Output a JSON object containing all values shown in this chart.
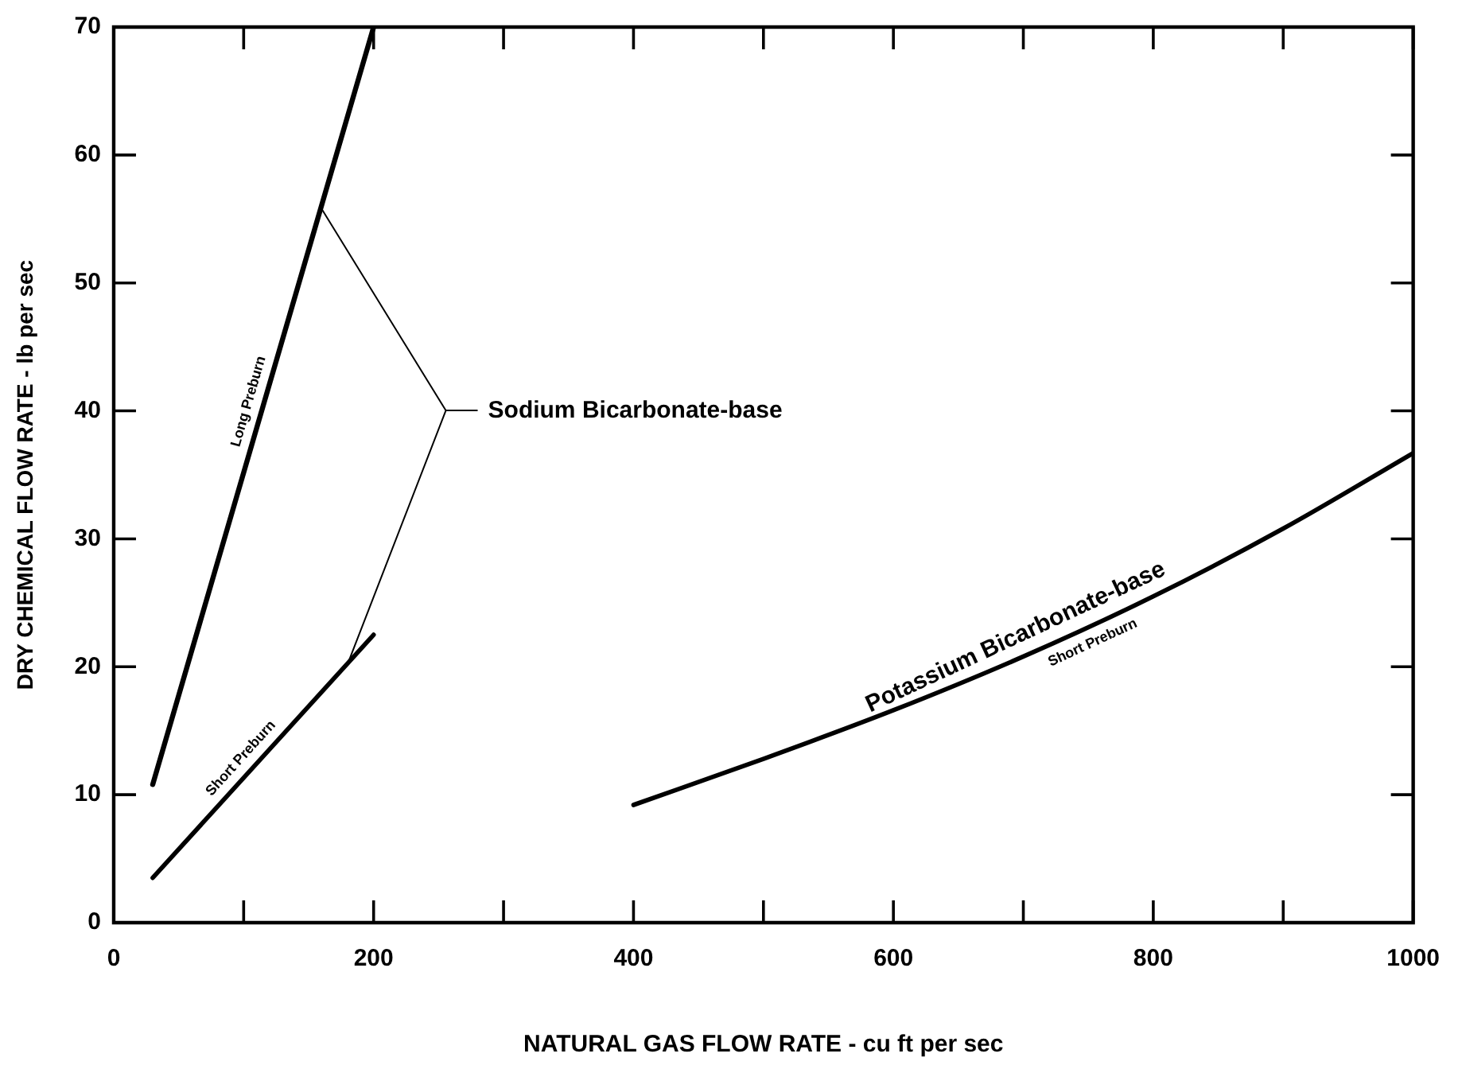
{
  "chart_data": {
    "type": "line",
    "xlabel": "NATURAL GAS FLOW RATE - cu ft per sec",
    "ylabel": "DRY CHEMICAL FLOW RATE - lb per sec",
    "xlim": [
      0,
      1000
    ],
    "xticks": [
      0,
      {
        "value": 100,
        "label": null
      },
      200,
      {
        "value": 300,
        "label": null
      },
      400,
      {
        "value": 500,
        "label": null
      },
      600,
      {
        "value": 700,
        "label": null
      },
      800,
      {
        "value": 900,
        "label": null
      },
      1000
    ],
    "ylim": [
      0,
      70
    ],
    "yticks": [
      0,
      10,
      20,
      30,
      40,
      50,
      60,
      70
    ],
    "series": [
      {
        "name": "Long Preburn",
        "color": "#000000",
        "x": [
          30,
          200
        ],
        "values": [
          10.8,
          70
        ]
      },
      {
        "name": "Short Preburn",
        "color": "#000000",
        "x": [
          30,
          200
        ],
        "values": [
          3.5,
          22.5
        ]
      },
      {
        "name": "Short Preburn",
        "color": "#000000",
        "x": [
          400,
          500,
          600,
          700,
          800,
          900,
          1000
        ],
        "values": [
          9.2,
          12.8,
          16.6,
          20.8,
          25.5,
          30.8,
          36.7
        ]
      }
    ],
    "annotations": [
      "Sodium Bicarbonate-base",
      {
        "text": "Potassium Bicarbonate-base",
        "x": 700,
        "y": 21
      }
    ],
    "grid": false,
    "legend": false,
    "marker": "none",
    "line_style": "solid"
  }
}
